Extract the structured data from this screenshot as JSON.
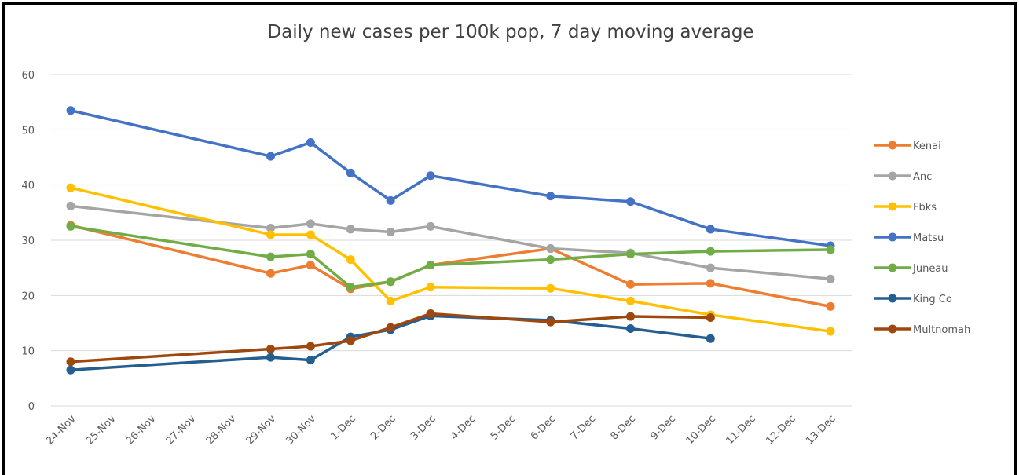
{
  "chart_data": {
    "type": "line",
    "title": "Daily new cases per 100k pop, 7 day moving average",
    "xticks": [
      "24-Nov",
      "25-Nov",
      "26-Nov",
      "27-Nov",
      "28-Nov",
      "29-Nov",
      "30-Nov",
      "1-Dec",
      "2-Dec",
      "3-Dec",
      "4-Dec",
      "5-Dec",
      "6-Dec",
      "7-Dec",
      "8-Dec",
      "9-Dec",
      "10-Dec",
      "11-Dec",
      "12-Dec",
      "13-Dec"
    ],
    "x": [
      "24-Nov",
      "29-Nov",
      "30-Nov",
      "1-Dec",
      "2-Dec",
      "3-Dec",
      "6-Dec",
      "8-Dec",
      "10-Dec",
      "13-Dec"
    ],
    "series": [
      {
        "name": "Kenai",
        "color": "#ed7d31",
        "values": [
          32.7,
          24,
          25.5,
          21.2,
          22.5,
          25.5,
          28.5,
          22,
          22.2,
          18
        ]
      },
      {
        "name": "Anc",
        "color": "#a5a5a5",
        "values": [
          36.2,
          32.2,
          33,
          32,
          31.5,
          32.5,
          28.5,
          27.7,
          25,
          23
        ]
      },
      {
        "name": "Fbks",
        "color": "#ffc000",
        "values": [
          39.5,
          31,
          31,
          26.5,
          19,
          21.5,
          21.3,
          19,
          16.5,
          13.5
        ]
      },
      {
        "name": "Matsu",
        "color": "#4472c4",
        "values": [
          53.5,
          45.2,
          47.7,
          42.2,
          37.2,
          41.7,
          38,
          37,
          32,
          29
        ]
      },
      {
        "name": "Juneau",
        "color": "#70ad47",
        "values": [
          32.5,
          27,
          27.5,
          21.5,
          22.5,
          25.5,
          26.5,
          27.5,
          28,
          28.3
        ]
      },
      {
        "name": "King Co",
        "color": "#255e91",
        "values": [
          6.5,
          8.8,
          8.3,
          12.5,
          13.8,
          16.3,
          15.5,
          14,
          12.2,
          null
        ]
      },
      {
        "name": "Multnomah",
        "color": "#9e480e",
        "values": [
          8,
          10.3,
          10.8,
          11.8,
          14.2,
          16.7,
          15.2,
          16.2,
          16,
          null
        ]
      }
    ],
    "ylim": [
      0,
      60
    ],
    "yticks": [
      0,
      10,
      20,
      30,
      40,
      50,
      60
    ],
    "grid": true,
    "legend": "right"
  }
}
